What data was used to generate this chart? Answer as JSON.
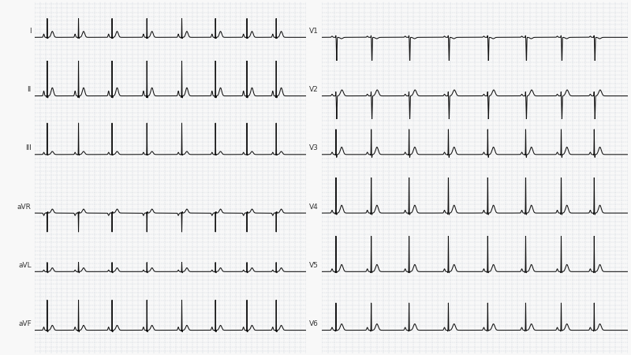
{
  "bg_color": "#f8f8f8",
  "grid_color": "#c8cfd8",
  "line_color": "#111111",
  "label_color": "#333333",
  "leads_left": [
    "I",
    "II",
    "III",
    "aVR",
    "aVL",
    "aVF"
  ],
  "leads_right": [
    "V1",
    "V2",
    "V3",
    "V4",
    "V5",
    "V6"
  ],
  "fs": 500,
  "duration": 10.0,
  "base_hr": 52,
  "arr_amp": 0.12,
  "lead_params": {
    "I": {
      "r": 0.45,
      "p": 0.6,
      "t": 0.55,
      "q": 0.2,
      "s": 0.15,
      "rS": false,
      "inv": false,
      "t_inv": false
    },
    "II": {
      "r": 0.85,
      "p": 0.9,
      "t": 0.75,
      "q": 0.35,
      "s": 0.25,
      "rS": false,
      "inv": false,
      "t_inv": false
    },
    "III": {
      "r": 0.75,
      "p": 0.4,
      "t": 0.28,
      "q": 0.1,
      "s": 0.1,
      "rS": false,
      "inv": false,
      "t_inv": false
    },
    "aVR": {
      "r": 0.45,
      "p": 0.45,
      "t": 0.38,
      "q": 0.18,
      "s": 0.18,
      "rS": false,
      "inv": true,
      "t_inv": true
    },
    "aVL": {
      "r": 0.22,
      "p": 0.3,
      "t": 0.35,
      "q": 0.15,
      "s": 0.15,
      "rS": false,
      "inv": false,
      "t_inv": false
    },
    "aVF": {
      "r": 0.72,
      "p": 0.58,
      "t": 0.45,
      "q": 0.22,
      "s": 0.22,
      "rS": false,
      "inv": false,
      "t_inv": false
    },
    "V1": {
      "r": 0.1,
      "p": 0.22,
      "t": 0.18,
      "q": 0.0,
      "s": 0.72,
      "rS": true,
      "inv": false,
      "t_inv": true
    },
    "V2": {
      "r": 0.22,
      "p": 0.32,
      "t": 0.48,
      "q": 0.06,
      "s": 0.65,
      "rS": true,
      "inv": false,
      "t_inv": false
    },
    "V3": {
      "r": 0.6,
      "p": 0.42,
      "t": 0.68,
      "q": 0.15,
      "s": 0.38,
      "rS": false,
      "inv": false,
      "t_inv": false
    },
    "V4": {
      "r": 0.95,
      "p": 0.52,
      "t": 0.72,
      "q": 0.25,
      "s": 0.22,
      "rS": false,
      "inv": false,
      "t_inv": false
    },
    "V5": {
      "r": 0.85,
      "p": 0.52,
      "t": 0.65,
      "q": 0.25,
      "s": 0.15,
      "rS": false,
      "inv": false,
      "t_inv": false
    },
    "V6": {
      "r": 0.65,
      "p": 0.52,
      "t": 0.58,
      "q": 0.25,
      "s": 0.08,
      "rS": false,
      "inv": false,
      "t_inv": false
    }
  }
}
